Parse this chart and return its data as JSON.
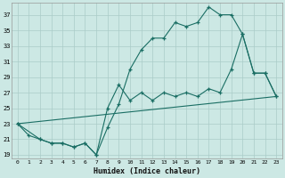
{
  "xlabel": "Humidex (Indice chaleur)",
  "background_color": "#cce8e4",
  "grid_color": "#aaccc8",
  "line_color": "#1a6e64",
  "xlim": [
    -0.5,
    23.5
  ],
  "ylim": [
    18.5,
    38.5
  ],
  "xticks": [
    0,
    1,
    2,
    3,
    4,
    5,
    6,
    7,
    8,
    9,
    10,
    11,
    12,
    13,
    14,
    15,
    16,
    17,
    18,
    19,
    20,
    21,
    22,
    23
  ],
  "yticks": [
    19,
    21,
    23,
    25,
    27,
    29,
    31,
    33,
    35,
    37
  ],
  "line1_x": [
    0,
    1,
    2,
    3,
    4,
    5,
    6,
    7,
    8,
    9,
    10,
    11,
    12,
    13,
    14,
    15,
    16,
    17,
    18,
    19,
    20,
    21,
    22,
    23
  ],
  "line1_y": [
    23,
    21.5,
    21,
    20.5,
    20.5,
    20,
    20.5,
    19,
    22.5,
    25.5,
    30,
    32.5,
    34,
    34,
    36,
    35.5,
    36,
    38,
    37,
    37,
    34.5,
    29.5,
    29.5,
    26.5
  ],
  "line2_x": [
    0,
    2,
    3,
    4,
    5,
    6,
    7,
    8,
    9,
    10,
    11,
    12,
    13,
    14,
    15,
    16,
    17,
    18,
    19,
    20,
    21,
    22,
    23
  ],
  "line2_y": [
    23,
    21,
    20.5,
    20.5,
    20,
    20.5,
    19,
    25,
    28,
    26,
    27,
    26,
    27,
    26.5,
    27,
    26.5,
    27.5,
    27,
    30,
    34.5,
    29.5,
    29.5,
    26.5
  ],
  "line3_x": [
    0,
    23
  ],
  "line3_y": [
    23,
    26.5
  ]
}
